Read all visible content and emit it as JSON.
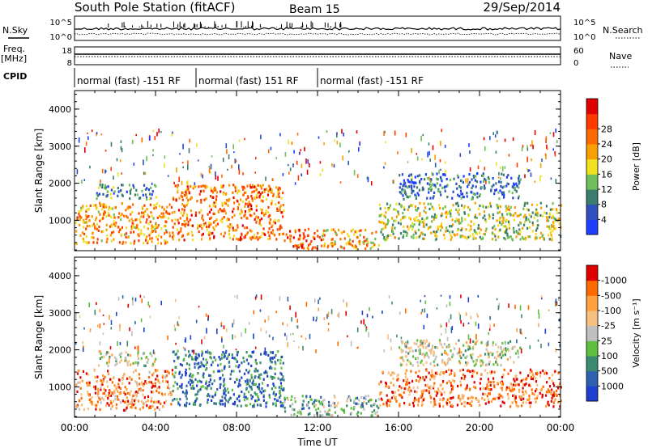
{
  "header": {
    "title": "South Pole Station (fitACF)",
    "beam": "Beam 15",
    "date": "29/Sep/2014"
  },
  "left_labels": {
    "nsky": "N.Sky",
    "freq": "Freq.",
    "mhz": "[MHz]",
    "cpid": "CPID"
  },
  "right_labels": {
    "nsearch": "N.Search",
    "nave": "Nave"
  },
  "noise_axis": {
    "top": "10^5",
    "bottom": "10^0"
  },
  "freq_axis": {
    "left_top": "18",
    "left_bottom": "8",
    "right_top": "60",
    "right_bottom": "0"
  },
  "cpid_segments": [
    {
      "label": "normal (fast) -151 RF",
      "start_hour": 0.0,
      "end_hour": 6.0
    },
    {
      "label": "normal (fast) 151 RF",
      "start_hour": 6.0,
      "end_hour": 12.0
    },
    {
      "label": "normal (fast) -151 RF",
      "start_hour": 12.0,
      "end_hour": 24.0
    }
  ],
  "chart_data": [
    {
      "type": "heatmap",
      "ylabel": "Slant Range [km]",
      "ylim": [
        180,
        4500
      ],
      "yticks": [
        "1000",
        "2000",
        "3000",
        "4000"
      ],
      "xlim": [
        0,
        24
      ],
      "colorbar_label": "Power [dB]",
      "colorbar_ticks": [
        "4",
        "8",
        "12",
        "16",
        "20",
        "24",
        "28"
      ],
      "colorbar_colors": [
        "#1f3fff",
        "#2f4fbf",
        "#3a7d6e",
        "#6fbf5a",
        "#f0e020",
        "#f7a000",
        "#ff6a00",
        "#ff3a00",
        "#e00000"
      ],
      "blobs": [
        {
          "t0": 0.0,
          "t1": 4.8,
          "r0": 400,
          "r1": 1500,
          "level": 0.65
        },
        {
          "t0": 4.8,
          "t1": 10.3,
          "r0": 500,
          "r1": 2000,
          "level": 0.72
        },
        {
          "t0": 10.3,
          "t1": 12.2,
          "r0": 250,
          "r1": 800,
          "level": 0.8
        },
        {
          "t0": 12.2,
          "t1": 15.0,
          "r0": 250,
          "r1": 800,
          "level": 0.6
        },
        {
          "t0": 15.0,
          "t1": 24.0,
          "r0": 500,
          "r1": 1500,
          "level": 0.45
        },
        {
          "t0": 1.0,
          "t1": 4.0,
          "r0": 1600,
          "r1": 2000,
          "level": 0.25
        },
        {
          "t0": 16.0,
          "t1": 22.0,
          "r0": 1600,
          "r1": 2300,
          "level": 0.2
        }
      ]
    },
    {
      "type": "heatmap",
      "ylabel": "Slant Range [km]",
      "ylim": [
        180,
        4500
      ],
      "yticks": [
        "1000",
        "2000",
        "3000",
        "4000"
      ],
      "xlim": [
        0,
        24
      ],
      "xticks": [
        "00:00",
        "04:00",
        "08:00",
        "12:00",
        "16:00",
        "20:00",
        "00:00"
      ],
      "xlabel": "Time UT",
      "colorbar_label": "Velocity [m s⁻¹]",
      "colorbar_ticks": [
        "1000",
        "500",
        "100",
        "25",
        "-25",
        "-100",
        "-500",
        "-1000"
      ],
      "colorbar_colors": [
        "#1f3fd0",
        "#2f5fb0",
        "#3a8a70",
        "#5fc040",
        "#bfbfbf",
        "#f7c080",
        "#ffa040",
        "#ff6a00",
        "#e00000"
      ],
      "blobs": [
        {
          "t0": 0.0,
          "t1": 4.8,
          "r0": 400,
          "r1": 1500,
          "level": 0.75
        },
        {
          "t0": 4.8,
          "t1": 10.3,
          "r0": 500,
          "r1": 2000,
          "level": 0.2
        },
        {
          "t0": 10.3,
          "t1": 12.2,
          "r0": 250,
          "r1": 800,
          "level": 0.35
        },
        {
          "t0": 12.2,
          "t1": 15.0,
          "r0": 250,
          "r1": 800,
          "level": 0.4
        },
        {
          "t0": 15.0,
          "t1": 24.0,
          "r0": 500,
          "r1": 1500,
          "level": 0.8
        },
        {
          "t0": 1.0,
          "t1": 4.0,
          "r0": 1600,
          "r1": 2000,
          "level": 0.5
        },
        {
          "t0": 16.0,
          "t1": 22.0,
          "r0": 1600,
          "r1": 2300,
          "level": 0.5
        }
      ]
    }
  ]
}
